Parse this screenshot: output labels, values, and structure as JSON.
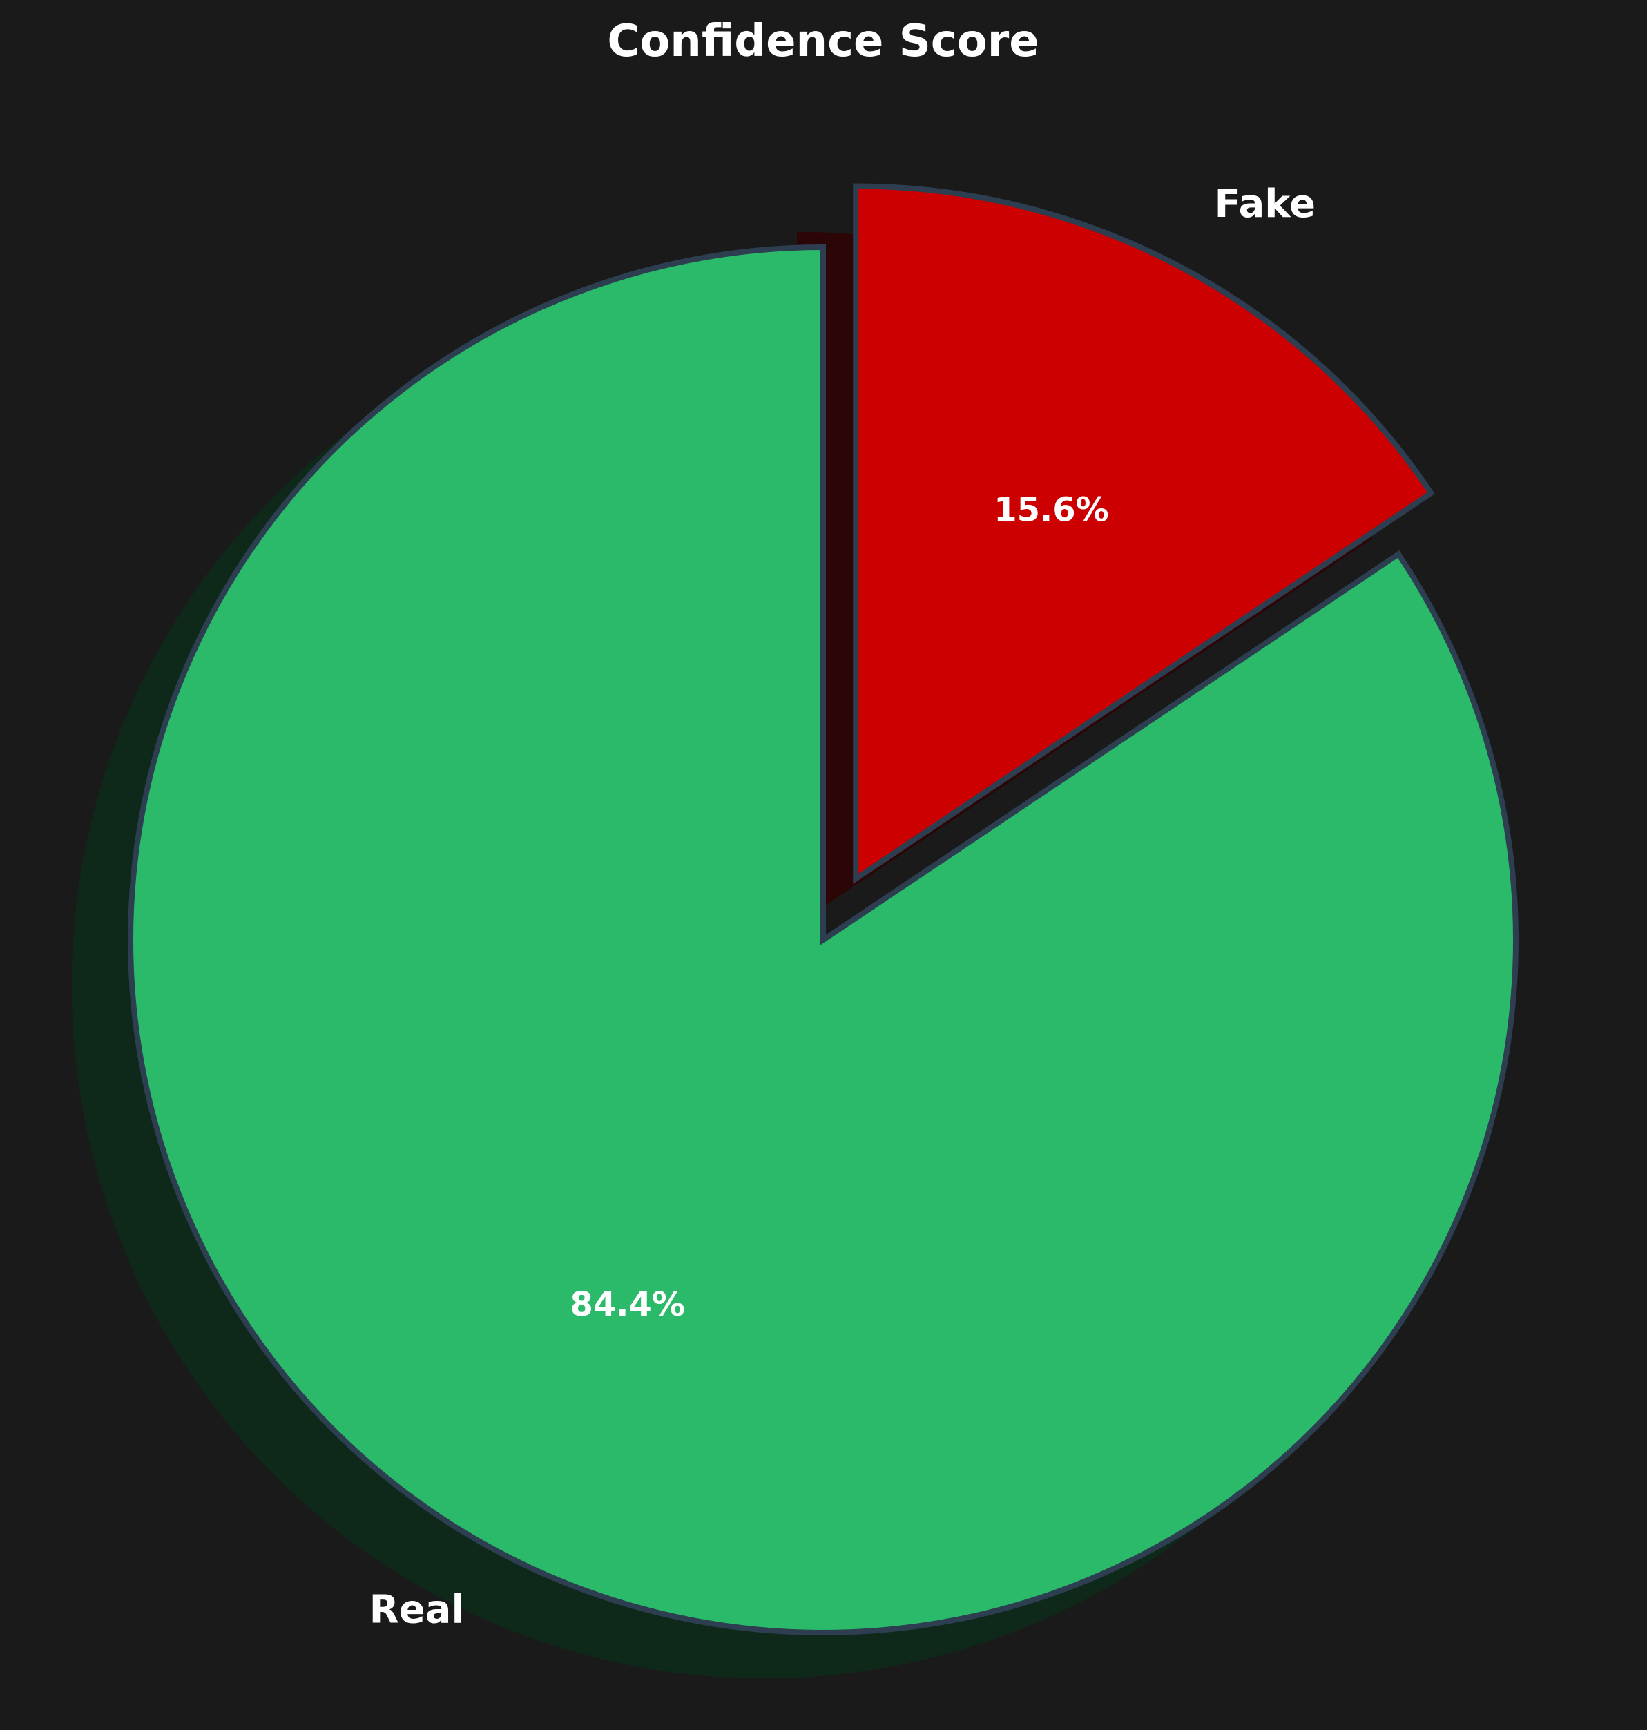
{
  "chart_data": {
    "type": "pie",
    "title": "Confidence Score",
    "start_angle": "top, counterclockwise",
    "shadow": true,
    "slices": [
      {
        "label": "Fake",
        "value": 15.6,
        "percent_label": "15.6%",
        "color": "#cc0000",
        "exploded": true
      },
      {
        "label": "Real",
        "value": 84.4,
        "percent_label": "84.4%",
        "color": "#2aba6a",
        "exploded": false
      }
    ],
    "edge_color": "#2c3e50",
    "background": "#1a1a1a"
  }
}
